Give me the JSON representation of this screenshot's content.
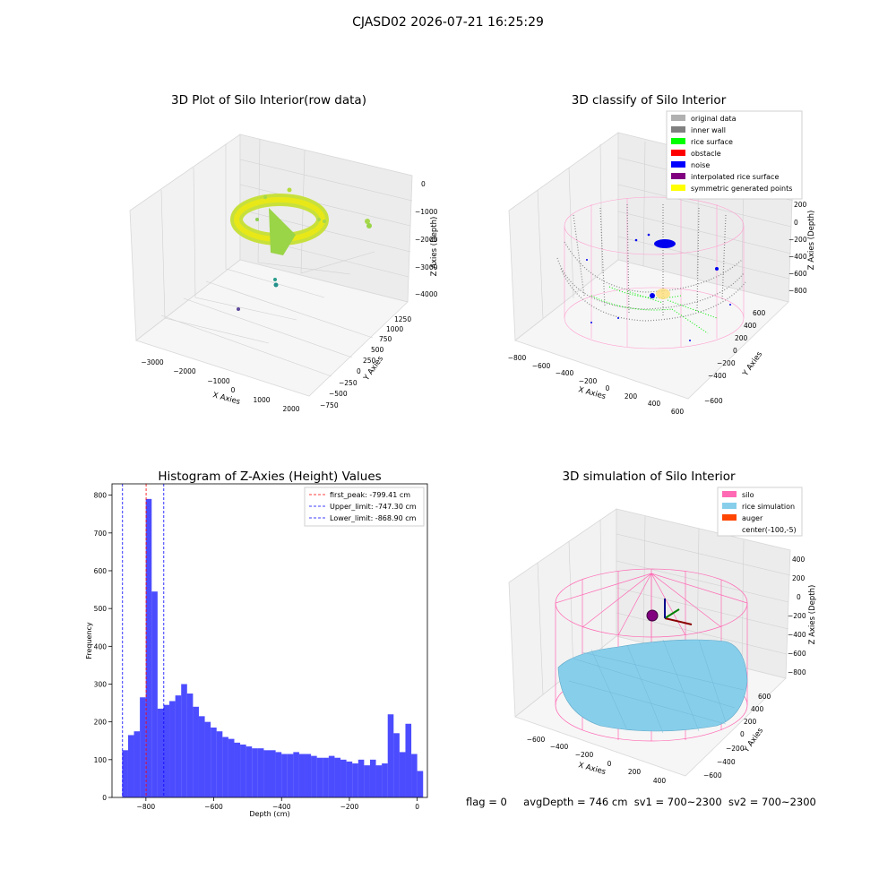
{
  "suptitle": "CJASD02 2026-07-21 16:25:29",
  "panels": {
    "raw": {
      "title": "3D Plot of Silo Interior(row data)",
      "xlabel": "X Axies",
      "ylabel": "Y Axies",
      "zlabel": "Z Axies (Depth)",
      "xticks": [
        "−3000",
        "−2000",
        "−1000",
        "0",
        "1000",
        "2000"
      ],
      "yticks": [
        "−750",
        "−500",
        "−250",
        "0",
        "250",
        "500",
        "750",
        "1000",
        "1250"
      ],
      "zticks": [
        "0",
        "−1000",
        "−2000",
        "−3000",
        "−4000"
      ]
    },
    "classify": {
      "title": "3D classify of Silo Interior",
      "xlabel": "X Axies",
      "ylabel": "Y Axies",
      "zlabel": "Z Axies (Depth)",
      "xticks": [
        "−800",
        "−600",
        "−400",
        "−200",
        "0",
        "200",
        "400",
        "600"
      ],
      "yticks": [
        "−600",
        "−400",
        "−200",
        "0",
        "200",
        "400",
        "600"
      ],
      "zticks": [
        "200",
        "0",
        "−200",
        "−400",
        "−600",
        "−800"
      ],
      "legend": [
        {
          "label": "original data",
          "color": "#b0b0b0"
        },
        {
          "label": "inner wall",
          "color": "#808080"
        },
        {
          "label": "rice surface",
          "color": "#00ff00"
        },
        {
          "label": "obstacle",
          "color": "#ff0000"
        },
        {
          "label": "noise",
          "color": "#0000ff"
        },
        {
          "label": "interpolated rice surface",
          "color": "#800080"
        },
        {
          "label": "symmetric generated points",
          "color": "#ffff00"
        }
      ]
    },
    "simulation": {
      "title": "3D simulation of Silo Interior",
      "xlabel": "X Axies",
      "ylabel": "Y Axies",
      "zlabel": "Z Axies (Depth)",
      "xticks": [
        "−600",
        "−400",
        "−200",
        "0",
        "200",
        "400"
      ],
      "yticks": [
        "−600",
        "−400",
        "−200",
        "0",
        "200",
        "400",
        "600"
      ],
      "zticks": [
        "400",
        "200",
        "0",
        "−200",
        "−400",
        "−600",
        "−800"
      ],
      "legend": [
        {
          "label": "silo",
          "color": "#ff69b4"
        },
        {
          "label": "rice simulation",
          "color": "#87ceeb"
        },
        {
          "label": "auger",
          "color": "#ff4500"
        },
        {
          "label": "center(-100,-5)",
          "color": ""
        }
      ]
    }
  },
  "chart_data": {
    "type": "bar",
    "title": "Histogram of Z-Axies (Height) Values",
    "xlabel": "Depth (cm)",
    "ylabel": "Frequency",
    "xlim": [
      -900,
      30
    ],
    "ylim": [
      0,
      830
    ],
    "xticks": [
      -800,
      -600,
      -400,
      -200,
      0
    ],
    "xtick_labels": [
      "−800",
      "−600",
      "−400",
      "−200",
      "0"
    ],
    "yticks": [
      0,
      100,
      200,
      300,
      400,
      500,
      600,
      700,
      800
    ],
    "bin_width": 17.4,
    "bin_start": -870,
    "bar_color": "#0000ff",
    "values": [
      125,
      165,
      175,
      265,
      790,
      545,
      235,
      245,
      255,
      270,
      300,
      275,
      240,
      215,
      200,
      185,
      175,
      160,
      155,
      145,
      140,
      135,
      130,
      130,
      125,
      125,
      120,
      115,
      115,
      120,
      115,
      115,
      110,
      105,
      105,
      110,
      105,
      100,
      95,
      90,
      100,
      85,
      100,
      85,
      90,
      220,
      170,
      120,
      195,
      115,
      70
    ],
    "vlines": [
      {
        "label": "first_peak: -799.41 cm",
        "x": -799.41,
        "color": "#ff0000"
      },
      {
        "label": "Upper_limit: -747.30 cm",
        "x": -747.3,
        "color": "#0000ff"
      },
      {
        "label": "Lower_limit: -868.90 cm",
        "x": -868.9,
        "color": "#0000ff"
      }
    ],
    "legend_position": "top-right"
  },
  "status": {
    "flag": "flag = 0",
    "avg": "avgDepth = 746 cm",
    "sv1": "sv1 = 700~2300",
    "sv2": "sv2 = 700~2300"
  }
}
